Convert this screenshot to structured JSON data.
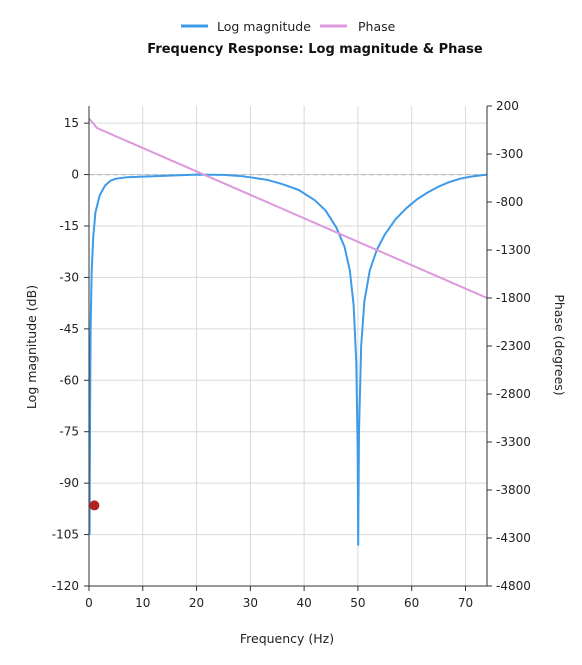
{
  "chart_data": {
    "type": "line",
    "title": "Frequency Response: Log magnitude & Phase",
    "xlabel": "Frequency (Hz)",
    "ylabel": "Log magnitude (dB)",
    "y2label": "Phase (degrees)",
    "xlim": [
      0,
      74
    ],
    "ylim": [
      -120,
      20
    ],
    "y2lim": [
      -4800,
      200
    ],
    "x_ticks": [
      0,
      10,
      20,
      30,
      40,
      50,
      60,
      70
    ],
    "y_ticks": [
      15,
      0,
      -15,
      -30,
      -45,
      -60,
      -75,
      -90,
      -105,
      -120
    ],
    "y2_ticks": [
      200,
      -300,
      -800,
      -1300,
      -1800,
      -2300,
      -2800,
      -3300,
      -3800,
      -4300,
      -4800
    ],
    "grid": true,
    "legend_position": "top-center",
    "reference_line": {
      "axis": "y",
      "value": 0,
      "style": "dashed",
      "color": "#bbbbbb"
    },
    "series": [
      {
        "name": "Log magnitude",
        "axis": "left",
        "color": "#3d9be9",
        "points": [
          [
            0.1,
            -105
          ],
          [
            0.2,
            -70
          ],
          [
            0.3,
            -45
          ],
          [
            0.5,
            -28
          ],
          [
            0.8,
            -18
          ],
          [
            1.2,
            -11
          ],
          [
            2,
            -6
          ],
          [
            3,
            -3.2
          ],
          [
            4,
            -1.8
          ],
          [
            5,
            -1.2
          ],
          [
            7,
            -0.8
          ],
          [
            10,
            -0.6
          ],
          [
            15,
            -0.3
          ],
          [
            20,
            0
          ],
          [
            25,
            -0.1
          ],
          [
            28,
            -0.4
          ],
          [
            30,
            -0.8
          ],
          [
            33,
            -1.5
          ],
          [
            36,
            -2.8
          ],
          [
            39,
            -4.5
          ],
          [
            42,
            -7.5
          ],
          [
            44,
            -10.5
          ],
          [
            46,
            -15.5
          ],
          [
            47.5,
            -21
          ],
          [
            48.5,
            -28
          ],
          [
            49.2,
            -38
          ],
          [
            49.7,
            -55
          ],
          [
            49.95,
            -80
          ],
          [
            50.05,
            -108
          ],
          [
            50.2,
            -75
          ],
          [
            50.6,
            -50
          ],
          [
            51.2,
            -37
          ],
          [
            52.2,
            -28
          ],
          [
            53.5,
            -22
          ],
          [
            55,
            -17.5
          ],
          [
            57,
            -13
          ],
          [
            59,
            -9.8
          ],
          [
            61,
            -7.2
          ],
          [
            63,
            -5.2
          ],
          [
            65,
            -3.5
          ],
          [
            67,
            -2.2
          ],
          [
            69,
            -1.2
          ],
          [
            71,
            -0.6
          ],
          [
            73,
            -0.2
          ],
          [
            74,
            0
          ]
        ]
      },
      {
        "name": "Phase",
        "axis": "right",
        "color": "#dd99dd",
        "points": [
          [
            0,
            70
          ],
          [
            1.5,
            -30
          ],
          [
            74,
            -1800
          ]
        ]
      }
    ],
    "marker": {
      "x": 1,
      "y": -96.5,
      "color": "#b22222"
    }
  }
}
